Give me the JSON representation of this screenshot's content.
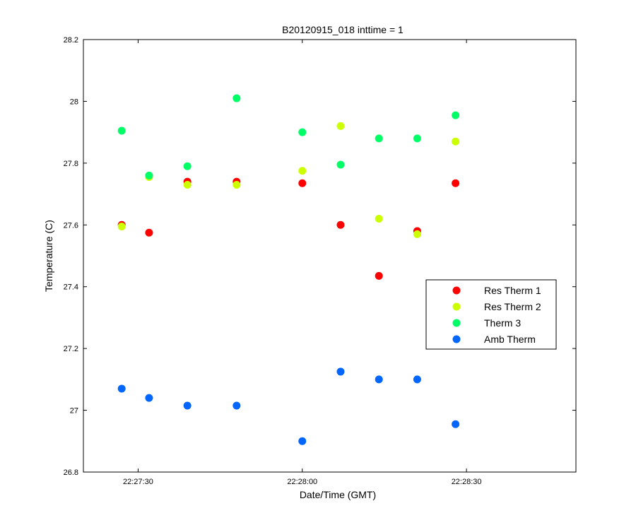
{
  "chart_data": {
    "type": "scatter",
    "title": "B20120915_018 inttime = 1",
    "xlabel": "Date/Time (GMT)",
    "ylabel": "Temperature (C)",
    "ylim": [
      26.8,
      28.2
    ],
    "xlim": [
      "22:27:20",
      "22:28:50"
    ],
    "y_ticks": [
      "26.8",
      "27",
      "27.2",
      "27.4",
      "27.6",
      "27.8",
      "28",
      "28.2"
    ],
    "x_ticks": [
      "22:27:30",
      "22:28:00",
      "22:28:30"
    ],
    "x": [
      "22:27:27",
      "22:27:32",
      "22:27:39",
      "22:27:48",
      "22:28:00",
      "22:28:07",
      "22:28:14",
      "22:28:21",
      "22:28:28"
    ],
    "series": [
      {
        "name": "Res Therm 1",
        "color": "#ff0000",
        "values": [
          27.6,
          27.575,
          27.74,
          27.74,
          27.735,
          27.6,
          27.435,
          27.58,
          27.735
        ]
      },
      {
        "name": "Res Therm 2",
        "color": "#ccff00",
        "values": [
          27.595,
          27.755,
          27.73,
          27.73,
          27.775,
          27.92,
          27.62,
          27.57,
          27.87
        ]
      },
      {
        "name": "Therm 3",
        "color": "#00ff66",
        "values": [
          27.905,
          27.76,
          27.79,
          28.01,
          27.9,
          27.795,
          27.88,
          27.88,
          27.955
        ]
      },
      {
        "name": "Amb Therm",
        "color": "#0066ff",
        "values": [
          27.07,
          27.04,
          27.015,
          27.015,
          26.9,
          27.125,
          27.1,
          27.1,
          26.955
        ]
      }
    ],
    "legend_position": "center-right",
    "grid": false
  }
}
